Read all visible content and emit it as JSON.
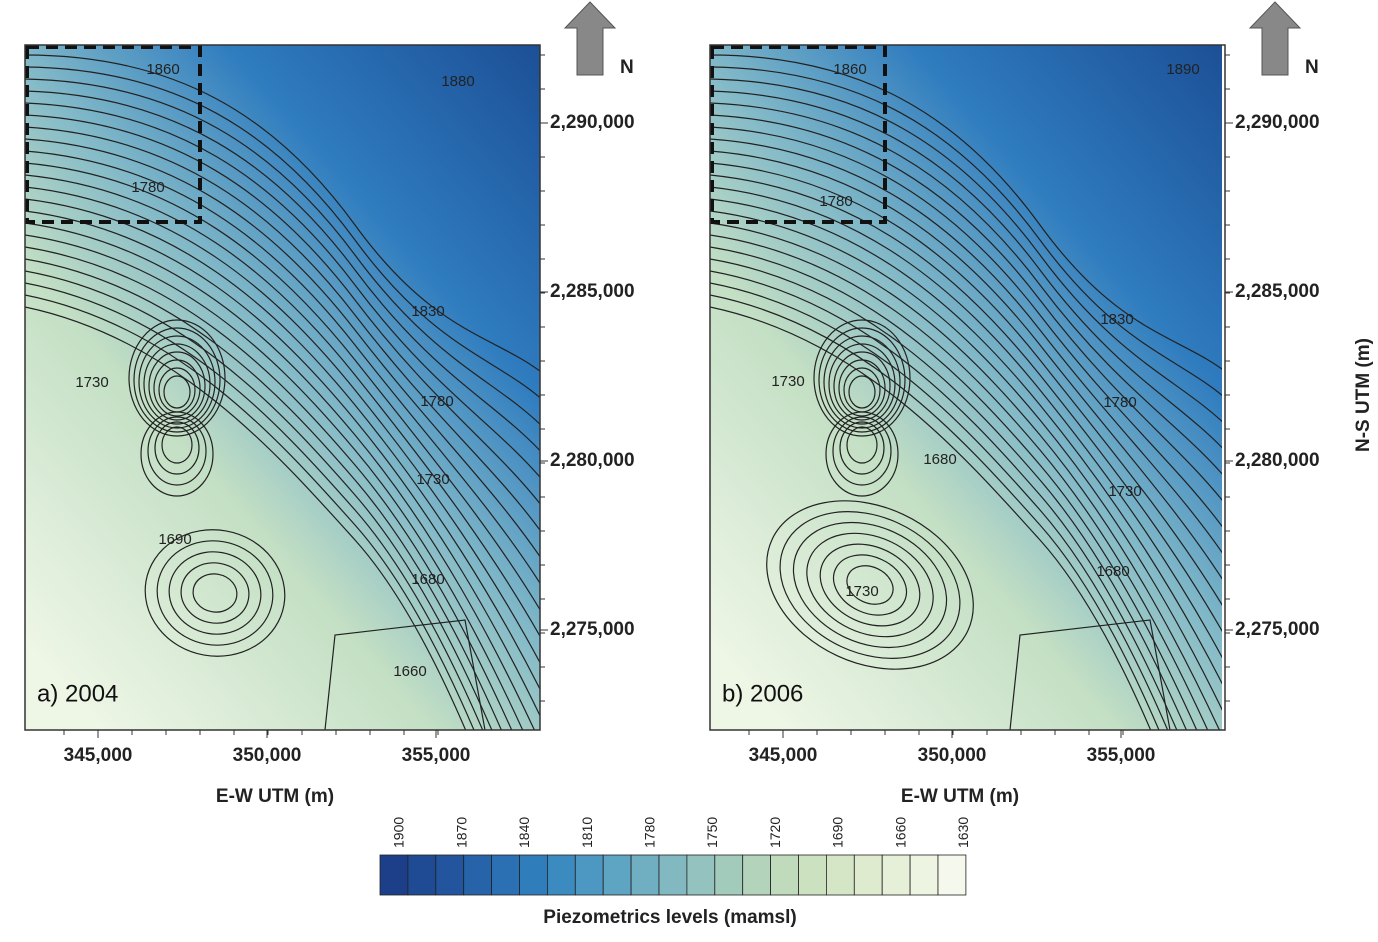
{
  "panels": [
    {
      "label": "a) 2004",
      "contour_labels": [
        "1860",
        "1880",
        "1780",
        "1830",
        "1730",
        "1780",
        "1730",
        "1690",
        "1680",
        "1660"
      ]
    },
    {
      "label": "b) 2006",
      "contour_labels": [
        "1860",
        "1890",
        "1780",
        "1830",
        "1730",
        "1780",
        "1680",
        "1730",
        "1730",
        "1680"
      ]
    }
  ],
  "axes": {
    "x_title": "E-W UTM (m)",
    "y_title": "N-S UTM (m)",
    "xticks": [
      "345,000",
      "350,000",
      "355,000"
    ],
    "yticks": [
      "2,290,000",
      "2,285,000",
      "2,280,000",
      "2,275,000"
    ]
  },
  "north": "N",
  "legend": {
    "title": "Piezometrics levels (mamsl)",
    "ticks": [
      "1900",
      "1870",
      "1840",
      "1810",
      "1780",
      "1750",
      "1720",
      "1690",
      "1660",
      "1630"
    ]
  }
}
